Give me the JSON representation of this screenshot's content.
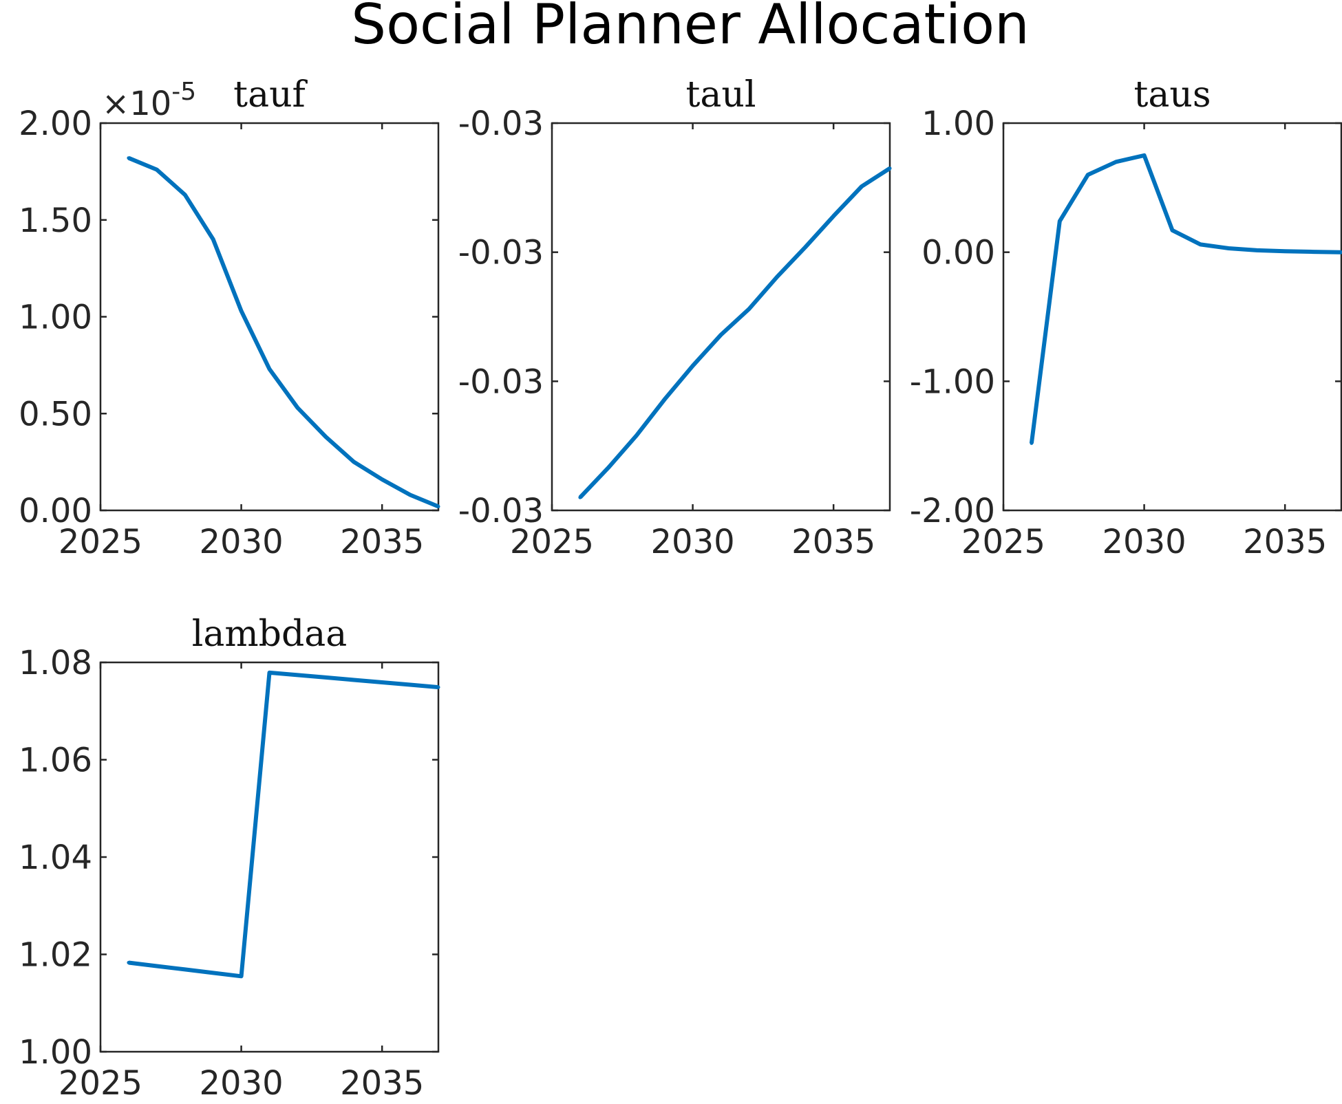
{
  "figure": {
    "title": "Social Planner Allocation",
    "line_color": "#0072BD"
  },
  "chart_data": [
    {
      "type": "line",
      "title": "tauf",
      "xlabel": "",
      "ylabel": "",
      "xlim": [
        2025,
        2037
      ],
      "ylim": [
        0,
        2.0
      ],
      "y_exponent": "×10-5",
      "y_exponent_base": "×10",
      "y_exponent_power": "-5",
      "x_ticks": [
        2025,
        2030,
        2035
      ],
      "x_tick_labels": [
        "2025",
        "2030",
        "2035"
      ],
      "y_ticks": [
        0,
        0.5,
        1.0,
        1.5,
        2.0
      ],
      "y_tick_labels": [
        "0.00",
        "0.50",
        "1.00",
        "1.50",
        "2.00"
      ],
      "grid": false,
      "series": [
        {
          "x": [
            2026,
            2027,
            2028,
            2029,
            2030,
            2031,
            2032,
            2033,
            2034,
            2035,
            2036,
            2037
          ],
          "y": [
            1.82,
            1.76,
            1.63,
            1.4,
            1.03,
            0.73,
            0.53,
            0.38,
            0.25,
            0.16,
            0.08,
            0.02
          ]
        }
      ]
    },
    {
      "type": "line",
      "title": "taul",
      "xlabel": "",
      "ylabel": "",
      "xlim": [
        2025,
        2037
      ],
      "ylim": [
        0,
        3
      ],
      "x_ticks": [
        2025,
        2030,
        2035
      ],
      "x_tick_labels": [
        "2025",
        "2030",
        "2035"
      ],
      "y_ticks": [
        0,
        1,
        2,
        3
      ],
      "y_tick_labels": [
        "-0.03",
        "-0.03",
        "-0.03",
        "-0.03"
      ],
      "grid": false,
      "series": [
        {
          "x": [
            2026,
            2027,
            2028,
            2029,
            2030,
            2031,
            2032,
            2033,
            2034,
            2035,
            2036,
            2037
          ],
          "y": [
            0.1,
            0.33,
            0.58,
            0.86,
            1.12,
            1.36,
            1.56,
            1.81,
            2.04,
            2.28,
            2.51,
            2.65
          ]
        }
      ]
    },
    {
      "type": "line",
      "title": "taus",
      "xlabel": "",
      "ylabel": "",
      "xlim": [
        2025,
        2037
      ],
      "ylim": [
        -2.0,
        1.0
      ],
      "x_ticks": [
        2025,
        2030,
        2035
      ],
      "x_tick_labels": [
        "2025",
        "2030",
        "2035"
      ],
      "y_ticks": [
        -2.0,
        -1.0,
        0.0,
        1.0
      ],
      "y_tick_labels": [
        "-2.00",
        "-1.00",
        "0.00",
        "1.00"
      ],
      "grid": false,
      "series": [
        {
          "x": [
            2026,
            2027,
            2028,
            2029,
            2030,
            2031,
            2032,
            2033,
            2034,
            2035,
            2036,
            2037
          ],
          "y": [
            -1.48,
            0.24,
            0.6,
            0.7,
            0.75,
            0.17,
            0.06,
            0.03,
            0.015,
            0.008,
            0.003,
            0.0
          ]
        }
      ]
    },
    {
      "type": "line",
      "title": "lambdaa",
      "xlabel": "",
      "ylabel": "",
      "xlim": [
        2025,
        2037
      ],
      "ylim": [
        1.0,
        1.08
      ],
      "x_ticks": [
        2025,
        2030,
        2035
      ],
      "x_tick_labels": [
        "2025",
        "2030",
        "2035"
      ],
      "y_ticks": [
        1.0,
        1.02,
        1.04,
        1.06,
        1.08
      ],
      "y_tick_labels": [
        "1.00",
        "1.02",
        "1.04",
        "1.06",
        "1.08"
      ],
      "grid": false,
      "series": [
        {
          "x": [
            2026,
            2027,
            2028,
            2029,
            2030,
            2031,
            2032,
            2033,
            2034,
            2035,
            2036,
            2037
          ],
          "y": [
            1.0183,
            1.0176,
            1.0169,
            1.0162,
            1.0155,
            1.0779,
            1.0774,
            1.0769,
            1.0764,
            1.0759,
            1.0754,
            1.0749
          ]
        }
      ]
    }
  ]
}
